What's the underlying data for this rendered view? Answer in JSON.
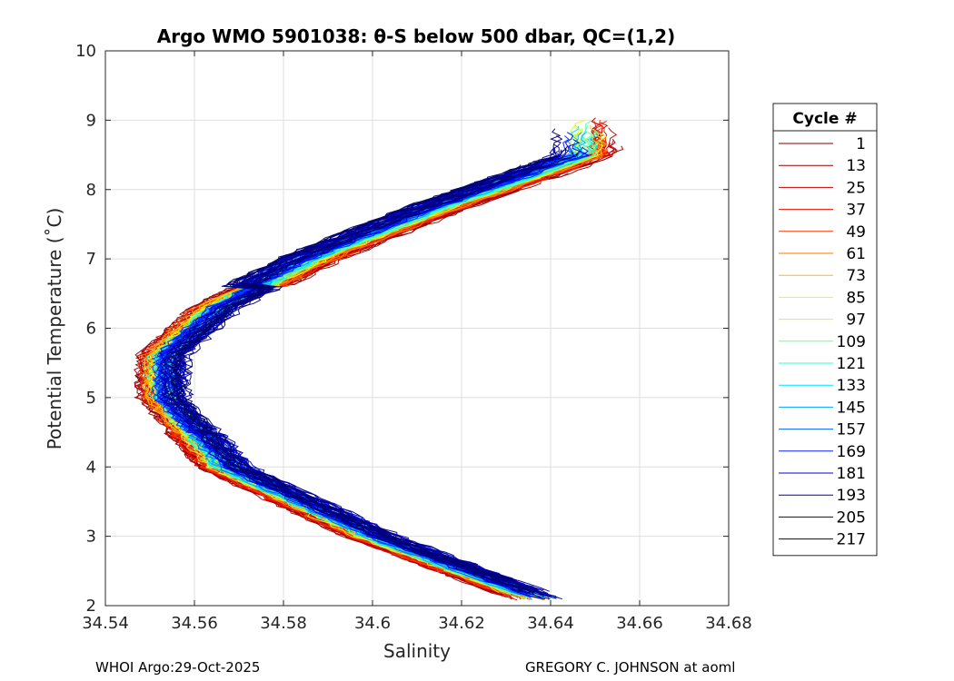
{
  "chart_data": {
    "type": "line",
    "title": "Argo WMO 5901038: θ-S below 500 dbar,  QC=(1,2)",
    "xlabel": "Salinity",
    "ylabel": "Potential Temperature (˚C)",
    "xlim": [
      34.54,
      34.68
    ],
    "ylim": [
      2,
      10
    ],
    "xticks": [
      "34.54",
      "34.56",
      "34.58",
      "34.6",
      "34.62",
      "34.64",
      "34.66",
      "34.68"
    ],
    "yticks": [
      "2",
      "3",
      "4",
      "5",
      "6",
      "7",
      "8",
      "9",
      "10"
    ],
    "grid": true,
    "legend_title": "Cycle #",
    "legend_position": "right-outside",
    "legend": [
      {
        "label": "1",
        "color": "#800000"
      },
      {
        "label": "13",
        "color": "#a00000"
      },
      {
        "label": "25",
        "color": "#c40000"
      },
      {
        "label": "37",
        "color": "#e81000"
      },
      {
        "label": "49",
        "color": "#ff3a00"
      },
      {
        "label": "61",
        "color": "#ff7a00"
      },
      {
        "label": "73",
        "color": "#ffbc00"
      },
      {
        "label": "85",
        "color": "#f2f20c"
      },
      {
        "label": "97",
        "color": "#b2ff4c"
      },
      {
        "label": "109",
        "color": "#6eff90"
      },
      {
        "label": "121",
        "color": "#2effd0"
      },
      {
        "label": "133",
        "color": "#00e4ff"
      },
      {
        "label": "145",
        "color": "#00a4ff"
      },
      {
        "label": "157",
        "color": "#0064ff"
      },
      {
        "label": "169",
        "color": "#0024ff"
      },
      {
        "label": "181",
        "color": "#0000e6"
      },
      {
        "label": "193",
        "color": "#0000bf"
      },
      {
        "label": "205",
        "color": "#000096"
      },
      {
        "label": "217",
        "color": "#00006e"
      }
    ],
    "series_shape": {
      "points": [
        {
          "t": 2.1,
          "s": 34.637
        },
        {
          "t": 3.0,
          "s": 34.6
        },
        {
          "t": 4.0,
          "s": 34.567
        },
        {
          "t": 5.0,
          "s": 34.553
        },
        {
          "t": 5.6,
          "s": 34.553
        },
        {
          "t": 6.3,
          "s": 34.565
        },
        {
          "t": 7.0,
          "s": 34.586
        },
        {
          "t": 7.7,
          "s": 34.613
        },
        {
          "t": 8.5,
          "s": 34.648
        }
      ],
      "note": "approximate centre of the θ-S profile envelope"
    }
  },
  "footer": {
    "left": "WHOI Argo:29-Oct-2025",
    "right": "GREGORY C. JOHNSON at aoml"
  }
}
